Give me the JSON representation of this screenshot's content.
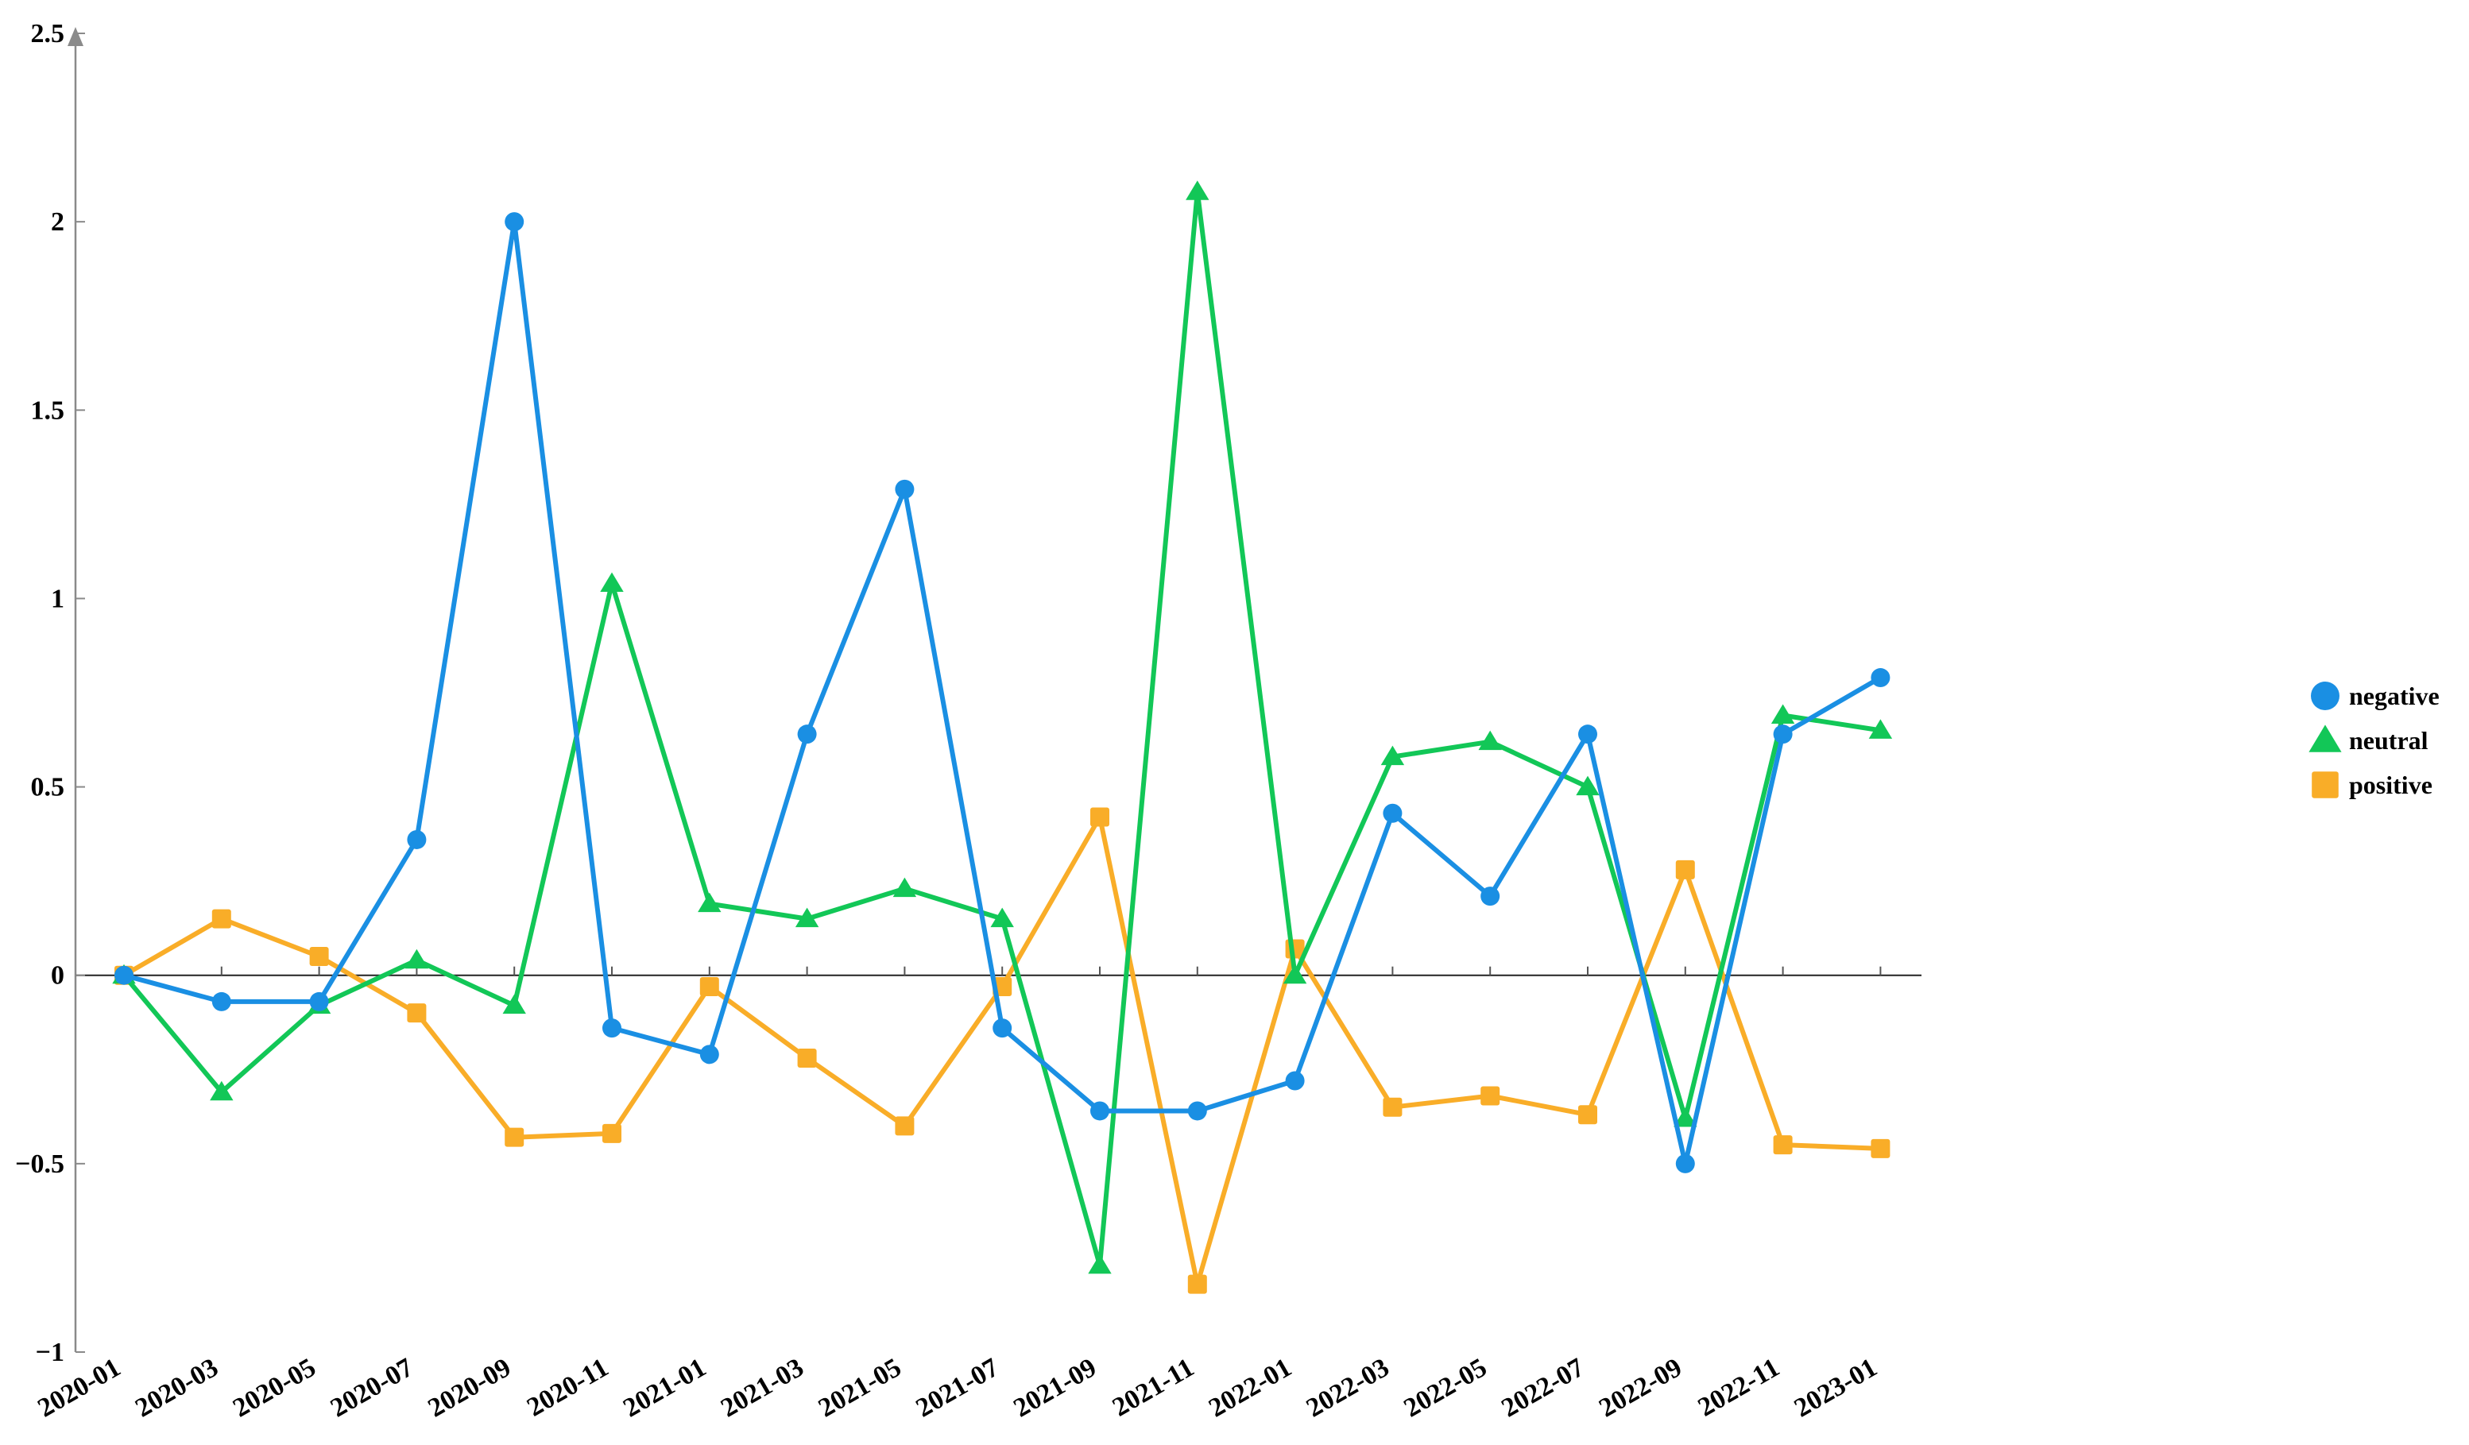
{
  "chart_data": {
    "type": "line",
    "title": "",
    "xlabel": "",
    "ylabel": "",
    "categories": [
      "2020-01",
      "2020-03",
      "2020-05",
      "2020-07",
      "2020-09",
      "2020-11",
      "2021-01",
      "2021-03",
      "2021-05",
      "2021-07",
      "2021-09",
      "2021-11",
      "2022-01",
      "2022-03",
      "2022-05",
      "2022-07",
      "2022-09",
      "2022-11",
      "2023-01"
    ],
    "ylim": [
      -1,
      2.5
    ],
    "yticks": [
      "−1",
      "−0.5",
      "0",
      "0.5",
      "1",
      "1.5",
      "2",
      "2.5"
    ],
    "ytick_values": [
      -1,
      -0.5,
      0,
      0.5,
      1,
      1.5,
      2,
      2.5
    ],
    "grid": false,
    "legend_position": "right",
    "series": [
      {
        "name": "negative",
        "marker": "circle",
        "color": "#1a8fe3",
        "values": [
          0,
          -0.07,
          -0.07,
          0.36,
          2.0,
          -0.14,
          -0.21,
          0.64,
          1.29,
          -0.14,
          -0.36,
          -0.36,
          -0.28,
          0.43,
          0.21,
          0.64,
          -0.5,
          0.64,
          0.79
        ]
      },
      {
        "name": "neutral",
        "marker": "triangle",
        "color": "#12c757",
        "values": [
          0,
          -0.31,
          -0.08,
          0.04,
          -0.08,
          1.04,
          0.19,
          0.15,
          0.23,
          0.15,
          -0.77,
          2.08,
          0.0,
          0.58,
          0.62,
          0.5,
          -0.38,
          0.69,
          0.65
        ]
      },
      {
        "name": "positive",
        "marker": "square",
        "color": "#f9ad28",
        "values": [
          0,
          0.15,
          0.05,
          -0.1,
          -0.43,
          -0.42,
          -0.03,
          -0.22,
          -0.4,
          -0.03,
          0.42,
          -0.82,
          0.07,
          -0.35,
          -0.32,
          -0.37,
          0.28,
          -0.45,
          -0.46
        ]
      }
    ]
  }
}
